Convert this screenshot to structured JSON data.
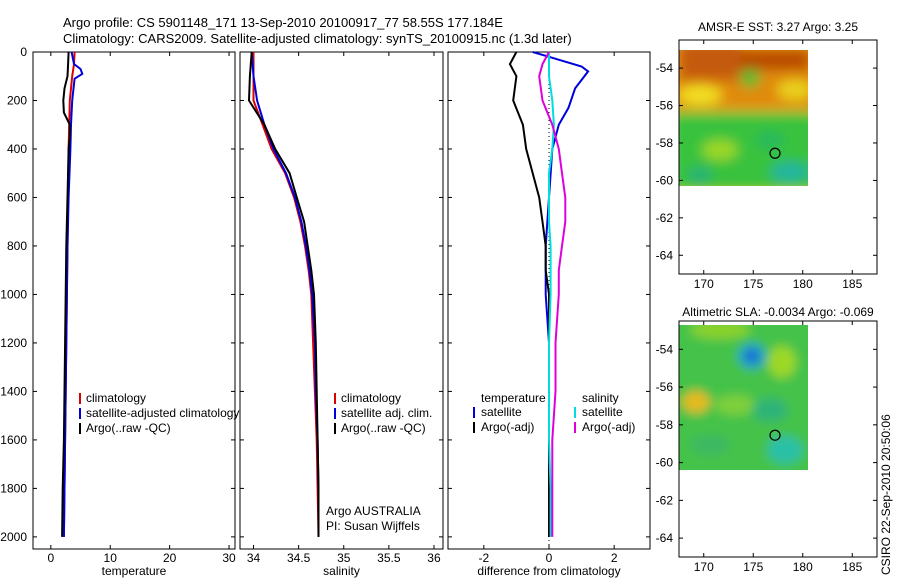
{
  "header": {
    "line1": "Argo profile: CS 5901148_171 13-Sep-2010 20100917_77 58.55S 177.184E",
    "line2": "Climatology: CARS2009. Satellite-adjusted climatology: synTS_20100915.nc (1.3d later)"
  },
  "side_label": "CSIRO 22-Sep-2010 20:50:06",
  "chart_data": [
    {
      "type": "line",
      "xlabel": "temperature",
      "xlim": [
        -3,
        31
      ],
      "ylim": [
        0,
        2050
      ],
      "y_reversed": true,
      "xticks": [
        0,
        10,
        20,
        30
      ],
      "yticks": [
        0,
        200,
        400,
        600,
        800,
        1000,
        1200,
        1400,
        1600,
        1800,
        2000
      ],
      "legend": [
        "climatology",
        "satellite-adjusted climatology",
        "Argo(..raw -QC)"
      ],
      "series": [
        {
          "name": "climatology",
          "color": "#dd0000",
          "points": [
            [
              4.0,
              0
            ],
            [
              3.9,
              50
            ],
            [
              3.6,
              100
            ],
            [
              3.2,
              200
            ],
            [
              3.1,
              300
            ],
            [
              3.0,
              400
            ],
            [
              2.9,
              600
            ],
            [
              2.8,
              800
            ],
            [
              2.7,
              1000
            ],
            [
              2.6,
              1200
            ],
            [
              2.5,
              1400
            ],
            [
              2.4,
              1600
            ],
            [
              2.3,
              1800
            ],
            [
              2.2,
              2000
            ]
          ]
        },
        {
          "name": "satellite-adjusted climatology",
          "color": "#0000dd",
          "points": [
            [
              3.5,
              0
            ],
            [
              3.9,
              50
            ],
            [
              5.0,
              70
            ],
            [
              5.3,
              90
            ],
            [
              4.0,
              110
            ],
            [
              3.6,
              200
            ],
            [
              3.4,
              300
            ],
            [
              3.3,
              400
            ],
            [
              3.0,
              600
            ],
            [
              2.8,
              800
            ],
            [
              2.7,
              1000
            ],
            [
              2.6,
              1200
            ],
            [
              2.5,
              1400
            ],
            [
              2.4,
              1600
            ],
            [
              2.3,
              1800
            ],
            [
              2.2,
              2000
            ]
          ]
        },
        {
          "name": "Argo(..raw -QC)",
          "color": "#000000",
          "points": [
            [
              3.0,
              0
            ],
            [
              2.9,
              50
            ],
            [
              2.8,
              100
            ],
            [
              2.3,
              150
            ],
            [
              2.1,
              200
            ],
            [
              2.2,
              250
            ],
            [
              3.2,
              300
            ],
            [
              3.2,
              350
            ],
            [
              3.0,
              400
            ],
            [
              2.8,
              600
            ],
            [
              2.6,
              800
            ],
            [
              2.5,
              1000
            ],
            [
              2.4,
              1200
            ],
            [
              2.3,
              1400
            ],
            [
              2.2,
              1600
            ],
            [
              2.0,
              1800
            ],
            [
              1.9,
              2000
            ]
          ]
        }
      ]
    },
    {
      "type": "line",
      "xlabel": "salinity",
      "xlim": [
        33.85,
        36.1
      ],
      "ylim": [
        0,
        2050
      ],
      "y_reversed": true,
      "xticks": [
        34,
        34.5,
        35,
        35.5,
        36
      ],
      "yticks": [
        0,
        200,
        400,
        600,
        800,
        1000,
        1200,
        1400,
        1600,
        1800,
        2000
      ],
      "legend": [
        "climatology",
        "satellite adj. clim.",
        "Argo(..raw -QC)"
      ],
      "annotations": [
        "Argo AUSTRALIA",
        "PI: Susan Wijffels"
      ],
      "series": [
        {
          "name": "climatology",
          "color": "#dd0000",
          "points": [
            [
              34.0,
              0
            ],
            [
              34.0,
              100
            ],
            [
              34.0,
              200
            ],
            [
              34.1,
              300
            ],
            [
              34.2,
              400
            ],
            [
              34.35,
              500
            ],
            [
              34.45,
              600
            ],
            [
              34.52,
              700
            ],
            [
              34.57,
              800
            ],
            [
              34.61,
              900
            ],
            [
              34.64,
              1000
            ],
            [
              34.66,
              1200
            ],
            [
              34.68,
              1400
            ],
            [
              34.7,
              1600
            ],
            [
              34.71,
              1800
            ],
            [
              34.72,
              2000
            ]
          ]
        },
        {
          "name": "satellite adj. clim.",
          "color": "#0000dd",
          "points": [
            [
              33.98,
              0
            ],
            [
              34.0,
              100
            ],
            [
              34.04,
              200
            ],
            [
              34.12,
              300
            ],
            [
              34.22,
              400
            ],
            [
              34.36,
              500
            ],
            [
              34.46,
              600
            ],
            [
              34.53,
              700
            ],
            [
              34.58,
              800
            ],
            [
              34.62,
              900
            ],
            [
              34.65,
              1000
            ],
            [
              34.68,
              1200
            ],
            [
              34.69,
              1400
            ],
            [
              34.71,
              1600
            ],
            [
              34.72,
              1800
            ],
            [
              34.72,
              2000
            ]
          ]
        },
        {
          "name": "Argo(..raw -QC)",
          "color": "#000000",
          "points": [
            [
              33.98,
              0
            ],
            [
              33.96,
              100
            ],
            [
              33.95,
              200
            ],
            [
              34.12,
              300
            ],
            [
              34.24,
              400
            ],
            [
              34.4,
              500
            ],
            [
              34.48,
              600
            ],
            [
              34.56,
              700
            ],
            [
              34.6,
              800
            ],
            [
              34.64,
              900
            ],
            [
              34.67,
              1000
            ],
            [
              34.69,
              1200
            ],
            [
              34.7,
              1400
            ],
            [
              34.71,
              1600
            ],
            [
              34.72,
              1800
            ],
            [
              34.72,
              2000
            ]
          ]
        }
      ]
    },
    {
      "type": "line",
      "xlabel": "difference from climatology",
      "xlim": [
        -3.1,
        3.1
      ],
      "ylim": [
        0,
        2050
      ],
      "y_reversed": true,
      "xticks": [
        -2,
        0,
        2
      ],
      "yticks": [
        0,
        200,
        400,
        600,
        800,
        1000,
        1200,
        1400,
        1600,
        1800,
        2000
      ],
      "legend_title_left": "temperature",
      "legend_title_right": "salinity",
      "legend_left": [
        "satellite",
        "Argo(-adj)"
      ],
      "legend_right": [
        "satellite",
        "Argo(-adj)"
      ],
      "series": [
        {
          "name": "temperature satellite",
          "color": "#0000dd",
          "points": [
            [
              -0.5,
              0
            ],
            [
              0,
              20
            ],
            [
              1.0,
              60
            ],
            [
              1.2,
              80
            ],
            [
              0.8,
              150
            ],
            [
              0.6,
              230
            ],
            [
              0.3,
              300
            ],
            [
              0.1,
              400
            ],
            [
              0,
              600
            ],
            [
              -0.1,
              800
            ],
            [
              -0.1,
              1000
            ],
            [
              0,
              1200
            ],
            [
              0,
              1400
            ],
            [
              0,
              1600
            ],
            [
              0,
              1800
            ],
            [
              0,
              2000
            ]
          ]
        },
        {
          "name": "temperature Argo(-adj)",
          "color": "#000000",
          "points": [
            [
              -1.0,
              0
            ],
            [
              -1.2,
              50
            ],
            [
              -1.0,
              100
            ],
            [
              -1.1,
              200
            ],
            [
              -0.8,
              300
            ],
            [
              -0.7,
              400
            ],
            [
              -0.5,
              500
            ],
            [
              -0.3,
              600
            ],
            [
              -0.2,
              700
            ],
            [
              -0.1,
              800
            ],
            [
              -0.1,
              900
            ],
            [
              0,
              1000
            ],
            [
              0,
              1200
            ],
            [
              0,
              1400
            ],
            [
              0,
              1600
            ],
            [
              0,
              1800
            ],
            [
              0,
              2000
            ]
          ]
        },
        {
          "name": "salinity satellite",
          "color": "#00dddd",
          "points": [
            [
              0,
              0
            ],
            [
              0,
              100
            ],
            [
              0.1,
              200
            ],
            [
              0.15,
              300
            ],
            [
              0.1,
              400
            ],
            [
              0,
              500
            ],
            [
              0,
              600
            ],
            [
              0,
              700
            ],
            [
              0.05,
              800
            ],
            [
              0.05,
              1000
            ],
            [
              0,
              1200
            ],
            [
              0,
              1400
            ],
            [
              0,
              1600
            ],
            [
              0.05,
              1800
            ],
            [
              0.05,
              2000
            ]
          ]
        },
        {
          "name": "salinity Argo(-adj)",
          "color": "#dd00dd",
          "points": [
            [
              0,
              0
            ],
            [
              -0.2,
              50
            ],
            [
              -0.3,
              100
            ],
            [
              -0.2,
              200
            ],
            [
              0.1,
              300
            ],
            [
              0.3,
              400
            ],
            [
              0.4,
              500
            ],
            [
              0.5,
              600
            ],
            [
              0.5,
              700
            ],
            [
              0.4,
              800
            ],
            [
              0.3,
              900
            ],
            [
              0.3,
              1000
            ],
            [
              0.2,
              1200
            ],
            [
              0.2,
              1400
            ],
            [
              0.1,
              1600
            ],
            [
              0.1,
              1800
            ],
            [
              0.1,
              2000
            ]
          ]
        }
      ]
    },
    {
      "type": "heatmap",
      "title": "AMSR-E SST: 3.27 Argo: 3.25",
      "xlim": [
        167.5,
        187.5
      ],
      "ylim": [
        -65,
        -52.5
      ],
      "xticks": [
        170,
        175,
        180,
        185
      ],
      "yticks": [
        -54,
        -56,
        -58,
        -60,
        -62,
        -64
      ],
      "data_extent": {
        "lon": [
          167.5,
          180
        ],
        "lat": [
          -60,
          -52.5
        ]
      },
      "marker": {
        "lon": 177.2,
        "lat": -58.55
      }
    },
    {
      "type": "heatmap",
      "title": "Altimetric SLA: -0.0034 Argo: -0.069",
      "xlim": [
        167.5,
        187.5
      ],
      "ylim": [
        -65,
        -52.5
      ],
      "xticks": [
        170,
        175,
        180,
        185
      ],
      "yticks": [
        -54,
        -56,
        -58,
        -60,
        -62,
        -64
      ],
      "data_extent": {
        "lon": [
          167.5,
          180
        ],
        "lat": [
          -60,
          -52.5
        ]
      },
      "marker": {
        "lon": 177.2,
        "lat": -58.55
      }
    }
  ]
}
